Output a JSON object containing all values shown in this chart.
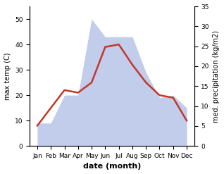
{
  "months": [
    "Jan",
    "Feb",
    "Mar",
    "Apr",
    "May",
    "Jun",
    "Jul",
    "Aug",
    "Sep",
    "Oct",
    "Nov",
    "Dec"
  ],
  "temperature": [
    8,
    15,
    22,
    21,
    25,
    39,
    40,
    32,
    25,
    20,
    19,
    10
  ],
  "precipitation": [
    9,
    9,
    20,
    20,
    50,
    43,
    43,
    43,
    29,
    19,
    20,
    15
  ],
  "temp_color": "#c0392b",
  "precip_color_fill": "#b8c4e8",
  "ylabel_left": "max temp (C)",
  "ylabel_right": "med. precipitation (kg/m2)",
  "xlabel": "date (month)",
  "ylim_left": [
    0,
    55
  ],
  "ylim_right": [
    0,
    35
  ],
  "yticks_left": [
    0,
    10,
    20,
    30,
    40,
    50
  ],
  "yticks_right": [
    0,
    5,
    10,
    15,
    20,
    25,
    30,
    35
  ],
  "precip_scale_factor": 1.5714
}
